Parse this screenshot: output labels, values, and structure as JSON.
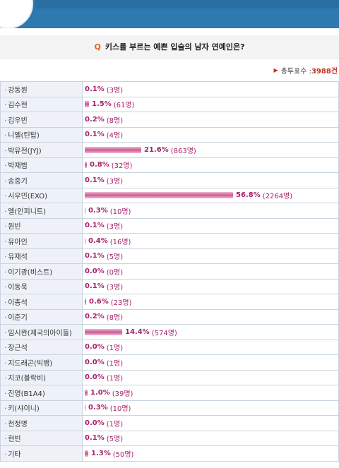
{
  "question": {
    "marker": "Q",
    "text": "키스를 부르는 예쁜 입술의 남자 연예인은?"
  },
  "total": {
    "label": "총투표수 : ",
    "count": "3988건"
  },
  "rows": [
    {
      "name": "강동원",
      "pct": "0.1%",
      "votes": "(3명)",
      "value": 0.1
    },
    {
      "name": "김수현",
      "pct": "1.5%",
      "votes": "(61명)",
      "value": 1.5
    },
    {
      "name": "김우빈",
      "pct": "0.2%",
      "votes": "(8명)",
      "value": 0.2
    },
    {
      "name": "니엘(틴탑)",
      "pct": "0.1%",
      "votes": "(4명)",
      "value": 0.1
    },
    {
      "name": "박유천(JYJ)",
      "pct": "21.6%",
      "votes": "(863명)",
      "value": 21.6
    },
    {
      "name": "박재범",
      "pct": "0.8%",
      "votes": "(32명)",
      "value": 0.8
    },
    {
      "name": "송중기",
      "pct": "0.1%",
      "votes": "(3명)",
      "value": 0.1
    },
    {
      "name": "시우민(EXO)",
      "pct": "56.8%",
      "votes": "(2264명)",
      "value": 56.8
    },
    {
      "name": "엘(인피니트)",
      "pct": "0.3%",
      "votes": "(10명)",
      "value": 0.3
    },
    {
      "name": "원빈",
      "pct": "0.1%",
      "votes": "(3명)",
      "value": 0.1
    },
    {
      "name": "유아인",
      "pct": "0.4%",
      "votes": "(16명)",
      "value": 0.4
    },
    {
      "name": "유재석",
      "pct": "0.1%",
      "votes": "(5명)",
      "value": 0.1
    },
    {
      "name": "이기광(비스트)",
      "pct": "0.0%",
      "votes": "(0명)",
      "value": 0.0
    },
    {
      "name": "이동욱",
      "pct": "0.1%",
      "votes": "(3명)",
      "value": 0.1
    },
    {
      "name": "이종석",
      "pct": "0.6%",
      "votes": "(23명)",
      "value": 0.6
    },
    {
      "name": "이준기",
      "pct": "0.2%",
      "votes": "(8명)",
      "value": 0.2
    },
    {
      "name": "임시완(제국의아이들)",
      "pct": "14.4%",
      "votes": "(574명)",
      "value": 14.4
    },
    {
      "name": "장근석",
      "pct": "0.0%",
      "votes": "(1명)",
      "value": 0.0
    },
    {
      "name": "지드래곤(빅뱅)",
      "pct": "0.0%",
      "votes": "(1명)",
      "value": 0.0
    },
    {
      "name": "지코(블락비)",
      "pct": "0.0%",
      "votes": "(1명)",
      "value": 0.0
    },
    {
      "name": "진영(B1A4)",
      "pct": "1.0%",
      "votes": "(39명)",
      "value": 1.0
    },
    {
      "name": "키(샤이니)",
      "pct": "0.3%",
      "votes": "(10명)",
      "value": 0.3
    },
    {
      "name": "천정명",
      "pct": "0.0%",
      "votes": "(1명)",
      "value": 0.0
    },
    {
      "name": "현빈",
      "pct": "0.1%",
      "votes": "(5명)",
      "value": 0.1
    },
    {
      "name": "기타",
      "pct": "1.3%",
      "votes": "(50명)",
      "value": 1.3
    }
  ]
}
